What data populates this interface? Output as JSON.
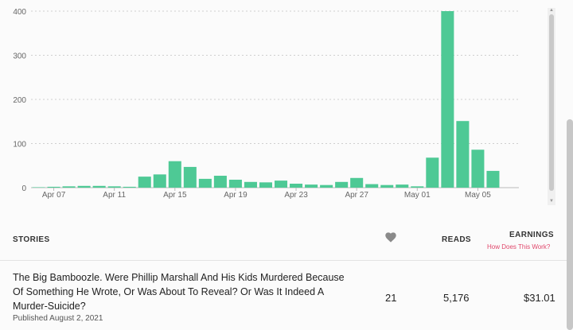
{
  "chart_data": {
    "type": "bar",
    "categories": [
      "Apr 06",
      "Apr 07",
      "Apr 08",
      "Apr 09",
      "Apr 10",
      "Apr 11",
      "Apr 12",
      "Apr 13",
      "Apr 14",
      "Apr 15",
      "Apr 16",
      "Apr 17",
      "Apr 18",
      "Apr 19",
      "Apr 20",
      "Apr 21",
      "Apr 22",
      "Apr 23",
      "Apr 24",
      "Apr 25",
      "Apr 26",
      "Apr 27",
      "Apr 28",
      "Apr 29",
      "Apr 30",
      "May 01",
      "May 02",
      "May 03",
      "May 04",
      "May 05",
      "May 06",
      "May 07"
    ],
    "values": [
      1,
      2,
      3,
      4,
      4,
      3,
      2,
      25,
      30,
      60,
      47,
      20,
      27,
      18,
      13,
      12,
      16,
      9,
      7,
      6,
      13,
      22,
      8,
      6,
      7,
      3,
      68,
      400,
      151,
      86,
      38,
      0
    ],
    "xtick_labels": [
      "Apr 07",
      "Apr 11",
      "Apr 15",
      "Apr 19",
      "Apr 23",
      "Apr 27",
      "May 01",
      "May 05"
    ],
    "ytick_labels": [
      "0",
      "100",
      "200",
      "300",
      "400"
    ],
    "ylim": [
      0,
      400
    ],
    "grid": true,
    "bar_color": "#4ec995"
  },
  "table": {
    "headers": {
      "stories": "STORIES",
      "votes_icon": "heart-icon",
      "reads": "READS",
      "earnings": "EARNINGS",
      "how_link": "How Does This Work?"
    },
    "rows": [
      {
        "title": "The Big Bamboozle. Were Phillip Marshall And His Kids Murdered Because Of Something He Wrote, Or Was About To Reveal? Or Was It Indeed A Murder-Suicide?",
        "published": "Published August 2, 2021",
        "votes": "21",
        "reads": "5,176",
        "earnings": "$31.01"
      }
    ]
  },
  "colors": {
    "accent_link": "#e0476b",
    "bar": "#4ec995"
  }
}
